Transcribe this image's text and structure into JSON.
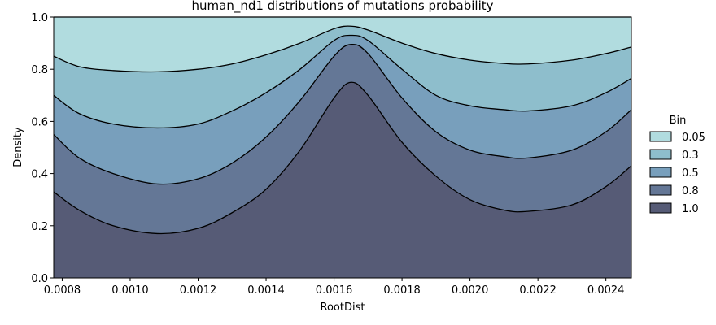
{
  "chart_data": {
    "type": "area",
    "title": "human_nd1 distributions of mutations probability",
    "xlabel": "RootDist",
    "ylabel": "Density",
    "xlim": [
      0.000775,
      0.002475
    ],
    "ylim": [
      0,
      1.0
    ],
    "x_ticks": [
      "0.0008",
      "0.0010",
      "0.0012",
      "0.0014",
      "0.0016",
      "0.0018",
      "0.0020",
      "0.0022",
      "0.0024"
    ],
    "y_ticks": [
      "0.0",
      "0.2",
      "0.4",
      "0.6",
      "0.8",
      "1.0"
    ],
    "x_tick_values": [
      0.0008,
      0.001,
      0.0012,
      0.0014,
      0.0016,
      0.0018,
      0.002,
      0.0022,
      0.0024
    ],
    "y_tick_values": [
      0.0,
      0.2,
      0.4,
      0.6,
      0.8,
      1.0
    ],
    "x": [
      0.000775,
      0.00085,
      0.00095,
      0.00108,
      0.0012,
      0.0013,
      0.0014,
      0.0015,
      0.0016,
      0.00165,
      0.0017,
      0.0018,
      0.0019,
      0.002,
      0.0021,
      0.00217,
      0.0023,
      0.0024,
      0.002475
    ],
    "legend_title": "Bin",
    "legend_position": "right",
    "series": [
      {
        "name": "1.0",
        "color": "#565b76",
        "values": [
          0.33,
          0.26,
          0.2,
          0.17,
          0.19,
          0.25,
          0.34,
          0.49,
          0.69,
          0.75,
          0.7,
          0.52,
          0.39,
          0.3,
          0.26,
          0.255,
          0.28,
          0.35,
          0.43
        ]
      },
      {
        "name": "0.8",
        "color": "#647796",
        "values": [
          0.55,
          0.46,
          0.4,
          0.36,
          0.38,
          0.44,
          0.54,
          0.68,
          0.85,
          0.895,
          0.86,
          0.69,
          0.56,
          0.49,
          0.465,
          0.46,
          0.49,
          0.56,
          0.645
        ]
      },
      {
        "name": "0.5",
        "color": "#789fbc",
        "values": [
          0.7,
          0.63,
          0.59,
          0.575,
          0.59,
          0.64,
          0.71,
          0.8,
          0.91,
          0.93,
          0.91,
          0.8,
          0.7,
          0.66,
          0.645,
          0.64,
          0.66,
          0.71,
          0.765
        ]
      },
      {
        "name": "0.3",
        "color": "#8ebecc",
        "values": [
          0.85,
          0.81,
          0.795,
          0.79,
          0.8,
          0.82,
          0.855,
          0.9,
          0.955,
          0.965,
          0.95,
          0.9,
          0.86,
          0.835,
          0.822,
          0.82,
          0.835,
          0.86,
          0.885
        ]
      },
      {
        "name": "0.05",
        "color": "#b1dcdf",
        "values": [
          1,
          1,
          1,
          1,
          1,
          1,
          1,
          1,
          1,
          1,
          1,
          1,
          1,
          1,
          1,
          1,
          1,
          1,
          1
        ]
      }
    ],
    "legend_entries": [
      {
        "label": "0.05",
        "color": "#b1dcdf"
      },
      {
        "label": "0.3",
        "color": "#8ebecc"
      },
      {
        "label": "0.5",
        "color": "#789fbc"
      },
      {
        "label": "0.8",
        "color": "#647796"
      },
      {
        "label": "1.0",
        "color": "#565b76"
      }
    ]
  }
}
